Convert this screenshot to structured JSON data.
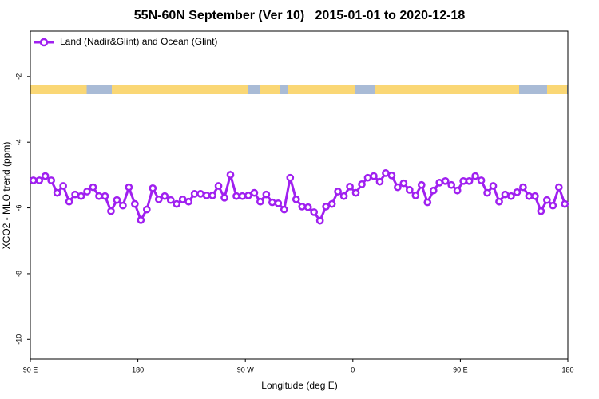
{
  "chart_data": {
    "type": "line",
    "title": "55N-60N September (Ver 10)   2015-01-01 to 2020-12-18",
    "x_label": "Longitude (deg E)",
    "y_label": "XCO2 - MLO trend (ppm)",
    "xlim": [
      -270,
      180
    ],
    "xticks": [
      {
        "value": -270,
        "label": "90 E"
      },
      {
        "value": -180,
        "label": "180"
      },
      {
        "value": -90,
        "label": "90 W"
      },
      0,
      {
        "value": 90,
        "label": "90 E"
      },
      {
        "value": 180,
        "label": "180"
      }
    ],
    "ylim": [
      -10.6,
      -0.62
    ],
    "yticks": [
      -2,
      -4,
      -6,
      -8,
      -10
    ],
    "legend": "top-left",
    "x": [
      -267.5,
      -262.5,
      -257.5,
      -252.5,
      -247.5,
      -242.5,
      -237.5,
      -232.5,
      -227.5,
      -222.5,
      -217.5,
      -212.5,
      -207.5,
      -202.5,
      -197.5,
      -192.5,
      -187.5,
      -182.5,
      -177.5,
      -172.5,
      -167.5,
      -162.5,
      -157.5,
      -152.5,
      -147.5,
      -142.5,
      -137.5,
      -132.5,
      -127.5,
      -122.5,
      -117.5,
      -112.5,
      -107.5,
      -102.5,
      -97.5,
      -92.5,
      -87.5,
      -82.5,
      -77.5,
      -72.5,
      -67.5,
      -62.5,
      -57.5,
      -52.5,
      -47.5,
      -42.5,
      -37.5,
      -32.5,
      -27.5,
      -22.5,
      -17.5,
      -12.5,
      -7.5,
      -2.5,
      2.5,
      7.5,
      12.5,
      17.5,
      22.5,
      27.5,
      32.5,
      37.5,
      42.5,
      47.5,
      52.5,
      57.5,
      62.5,
      67.5,
      72.5,
      77.5,
      82.5,
      87.5,
      92.5,
      97.5,
      102.5,
      107.5,
      112.5,
      117.5,
      122.5,
      127.5,
      132.5,
      137.5,
      142.5,
      147.5,
      152.5,
      157.5,
      162.5,
      167.5,
      172.5,
      177.5
    ],
    "series": [
      {
        "name": "Land (Nadir&Glint) and Ocean (Glint)",
        "color": "#a020f0",
        "values": [
          -5.16,
          -5.16,
          -5.03,
          -5.16,
          -5.54,
          -5.33,
          -5.81,
          -5.59,
          -5.64,
          -5.5,
          -5.37,
          -5.64,
          -5.64,
          -6.1,
          -5.76,
          -5.93,
          -5.37,
          -5.88,
          -6.37,
          -6.05,
          -5.4,
          -5.74,
          -5.64,
          -5.76,
          -5.88,
          -5.74,
          -5.81,
          -5.57,
          -5.57,
          -5.62,
          -5.62,
          -5.33,
          -5.69,
          -4.99,
          -5.64,
          -5.64,
          -5.62,
          -5.54,
          -5.81,
          -5.59,
          -5.83,
          -5.86,
          -6.05,
          -5.08,
          -5.74,
          -5.96,
          -5.98,
          -6.13,
          -6.39,
          -5.96,
          -5.88,
          -5.5,
          -5.64,
          -5.35,
          -5.54,
          -5.28,
          -5.08,
          -5.03,
          -5.2,
          -4.94,
          -5.01,
          -5.37,
          -5.25,
          -5.45,
          -5.62,
          -5.3,
          -5.83,
          -5.47,
          -5.23,
          -5.18,
          -5.3,
          -5.47,
          -5.18,
          -5.18,
          -5.03,
          -5.16,
          -5.54,
          -5.33,
          -5.81,
          -5.59,
          -5.64,
          -5.52,
          -5.37,
          -5.64,
          -5.64,
          -6.1,
          -5.76,
          -5.93,
          -5.37,
          -5.88
        ]
      }
    ]
  }
}
